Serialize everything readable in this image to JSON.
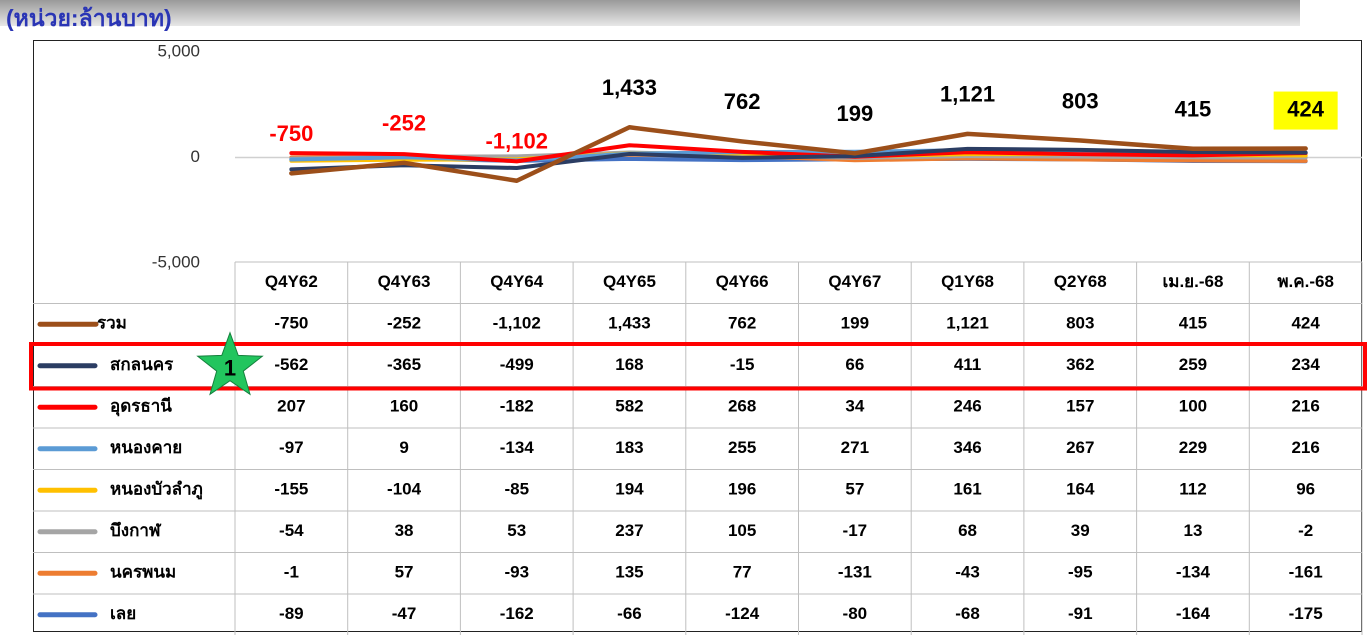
{
  "chart_data": {
    "type": "line",
    "title": "(หน่วย:ล้านบาท)",
    "categories": [
      "Q4Y62",
      "Q4Y63",
      "Q4Y64",
      "Q4Y65",
      "Q4Y66",
      "Q4Y67",
      "Q1Y68",
      "Q2Y68",
      "เม.ย.-68",
      "พ.ค.-68"
    ],
    "series": [
      {
        "name": "รวม",
        "color": "#9c4f1a",
        "values": [
          -750,
          -252,
          -1102,
          1433,
          762,
          199,
          1121,
          803,
          415,
          424
        ],
        "value_labels": [
          "-750",
          "-252",
          "-1,102",
          "1,433",
          "762",
          "199",
          "1,121",
          "803",
          "415",
          "424"
        ]
      },
      {
        "name": "สกลนคร",
        "color": "#2b3d63",
        "values": [
          -562,
          -365,
          -499,
          168,
          -15,
          66,
          411,
          362,
          259,
          234
        ]
      },
      {
        "name": "อุดรธานี",
        "color": "#ff0000",
        "values": [
          207,
          160,
          -182,
          582,
          268,
          34,
          246,
          157,
          100,
          216
        ]
      },
      {
        "name": "หนองคาย",
        "color": "#5b9bd5",
        "values": [
          -97,
          9,
          -134,
          183,
          255,
          271,
          346,
          267,
          229,
          216
        ]
      },
      {
        "name": "หนองบัวลำภู",
        "color": "#ffc000",
        "values": [
          -155,
          -104,
          -85,
          194,
          196,
          57,
          161,
          164,
          112,
          96
        ]
      },
      {
        "name": "บึงกาฬ",
        "color": "#a5a5a5",
        "values": [
          -54,
          38,
          53,
          237,
          105,
          -17,
          68,
          39,
          13,
          -2
        ]
      },
      {
        "name": "นครพนม",
        "color": "#ed7d31",
        "values": [
          -1,
          57,
          -93,
          135,
          77,
          -131,
          -43,
          -95,
          -134,
          -161
        ]
      },
      {
        "name": "เลย",
        "color": "#4472c4",
        "values": [
          -89,
          -47,
          -162,
          -66,
          -124,
          -80,
          -68,
          -91,
          -164,
          -175
        ]
      }
    ],
    "ylim": [
      -5000,
      5000
    ],
    "yticks": [
      {
        "value": -5000,
        "label": "-5,000"
      },
      0,
      {
        "value": 5000,
        "label": "5,000"
      }
    ],
    "annotation": "1"
  }
}
